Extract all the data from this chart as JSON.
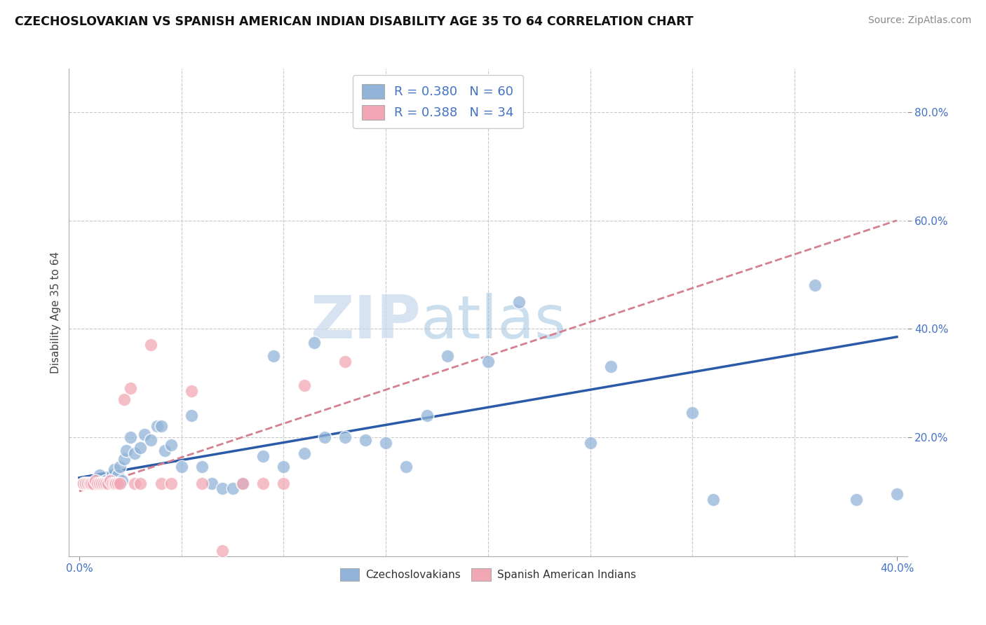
{
  "title": "CZECHOSLOVAKIAN VS SPANISH AMERICAN INDIAN DISABILITY AGE 35 TO 64 CORRELATION CHART",
  "source": "Source: ZipAtlas.com",
  "ylabel": "Disability Age 35 to 64",
  "xlim": [
    -0.005,
    0.405
  ],
  "ylim": [
    -0.02,
    0.88
  ],
  "blue_color": "#92B4D8",
  "pink_color": "#F2A8B4",
  "blue_line_color": "#2B5BA8",
  "pink_line_color": "#D48090",
  "grid_color": "#C8C8C8",
  "watermark_zip": "ZIP",
  "watermark_atlas": "atlas",
  "legend_R1": "R = 0.380",
  "legend_N1": "N = 60",
  "legend_R2": "R = 0.388",
  "legend_N2": "N = 34",
  "blue_scatter_x": [
    0.002,
    0.003,
    0.004,
    0.005,
    0.006,
    0.007,
    0.008,
    0.009,
    0.01,
    0.01,
    0.011,
    0.012,
    0.013,
    0.014,
    0.015,
    0.016,
    0.017,
    0.018,
    0.019,
    0.02,
    0.021,
    0.022,
    0.023,
    0.025,
    0.027,
    0.03,
    0.032,
    0.035,
    0.038,
    0.04,
    0.042,
    0.045,
    0.05,
    0.055,
    0.06,
    0.065,
    0.07,
    0.075,
    0.08,
    0.09,
    0.095,
    0.1,
    0.11,
    0.115,
    0.12,
    0.13,
    0.14,
    0.15,
    0.16,
    0.17,
    0.18,
    0.2,
    0.215,
    0.25,
    0.26,
    0.3,
    0.31,
    0.36,
    0.38,
    0.4
  ],
  "blue_scatter_y": [
    0.115,
    0.115,
    0.115,
    0.115,
    0.115,
    0.115,
    0.115,
    0.115,
    0.115,
    0.13,
    0.115,
    0.115,
    0.12,
    0.115,
    0.115,
    0.13,
    0.14,
    0.115,
    0.13,
    0.145,
    0.12,
    0.16,
    0.175,
    0.2,
    0.17,
    0.18,
    0.205,
    0.195,
    0.22,
    0.22,
    0.175,
    0.185,
    0.145,
    0.24,
    0.145,
    0.115,
    0.105,
    0.105,
    0.115,
    0.165,
    0.35,
    0.145,
    0.17,
    0.375,
    0.2,
    0.2,
    0.195,
    0.19,
    0.145,
    0.24,
    0.35,
    0.34,
    0.45,
    0.19,
    0.33,
    0.245,
    0.085,
    0.48,
    0.085,
    0.095
  ],
  "pink_scatter_x": [
    0.002,
    0.003,
    0.004,
    0.005,
    0.006,
    0.007,
    0.008,
    0.009,
    0.01,
    0.011,
    0.012,
    0.013,
    0.014,
    0.015,
    0.016,
    0.017,
    0.018,
    0.019,
    0.02,
    0.022,
    0.025,
    0.027,
    0.03,
    0.035,
    0.04,
    0.045,
    0.055,
    0.06,
    0.07,
    0.08,
    0.09,
    0.1,
    0.11,
    0.13
  ],
  "pink_scatter_y": [
    0.115,
    0.115,
    0.115,
    0.115,
    0.115,
    0.115,
    0.12,
    0.115,
    0.115,
    0.115,
    0.115,
    0.115,
    0.115,
    0.12,
    0.115,
    0.115,
    0.115,
    0.115,
    0.115,
    0.27,
    0.29,
    0.115,
    0.115,
    0.37,
    0.115,
    0.115,
    0.285,
    0.115,
    -0.01,
    0.115,
    0.115,
    0.115,
    0.295,
    0.34
  ],
  "blue_fit_x": [
    0.0,
    0.4
  ],
  "blue_fit_y": [
    0.125,
    0.385
  ],
  "pink_fit_x": [
    0.0,
    0.4
  ],
  "pink_fit_y": [
    0.1,
    0.6
  ]
}
